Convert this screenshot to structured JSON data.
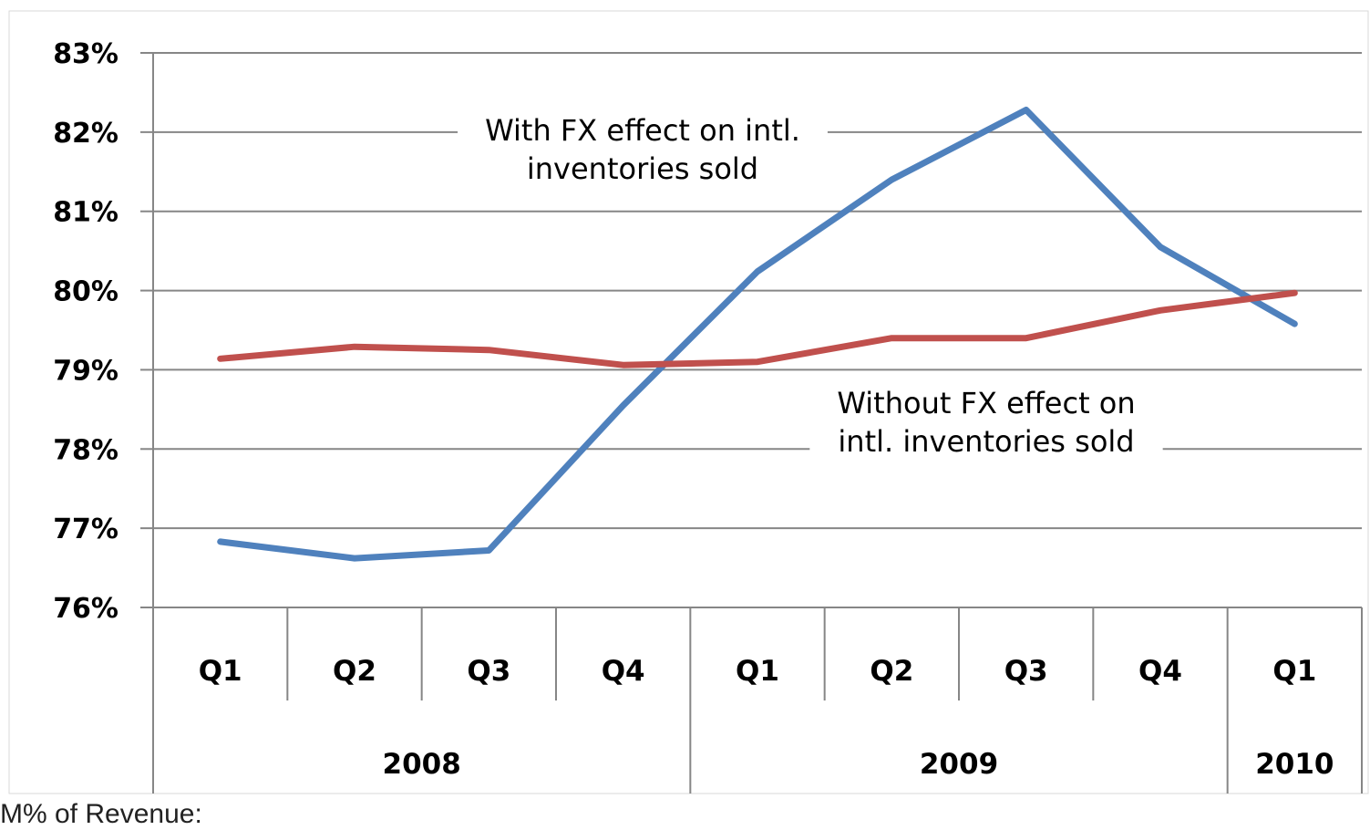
{
  "chart_data": {
    "type": "line",
    "categories": [
      "Q1",
      "Q2",
      "Q3",
      "Q4",
      "Q1",
      "Q2",
      "Q3",
      "Q4",
      "Q1"
    ],
    "category_groups": [
      {
        "label": "2008",
        "count": 4
      },
      {
        "label": "2009",
        "count": 4
      },
      {
        "label": "2010",
        "count": 1
      }
    ],
    "ylim": [
      76,
      83
    ],
    "yticks": [
      "76%",
      "77%",
      "78%",
      "79%",
      "80%",
      "81%",
      "82%",
      "83%"
    ],
    "grid": true,
    "series": [
      {
        "name": "With FX effect on intl. inventories sold",
        "color": "#4F81BD",
        "values": [
          76.83,
          76.62,
          76.72,
          78.55,
          80.24,
          81.4,
          82.28,
          80.55,
          79.58
        ]
      },
      {
        "name": "Without FX effect on intl. inventories sold",
        "color": "#C0504D",
        "values": [
          79.14,
          79.29,
          79.25,
          79.06,
          79.1,
          79.4,
          79.4,
          79.75,
          79.97
        ]
      }
    ],
    "annotations": [
      {
        "lines": [
          "With FX effect on intl.",
          "inventories sold"
        ]
      },
      {
        "lines": [
          "Without FX effect on",
          "intl. inventories sold"
        ]
      }
    ]
  },
  "footer": {
    "text": "M% of Revenue:"
  }
}
